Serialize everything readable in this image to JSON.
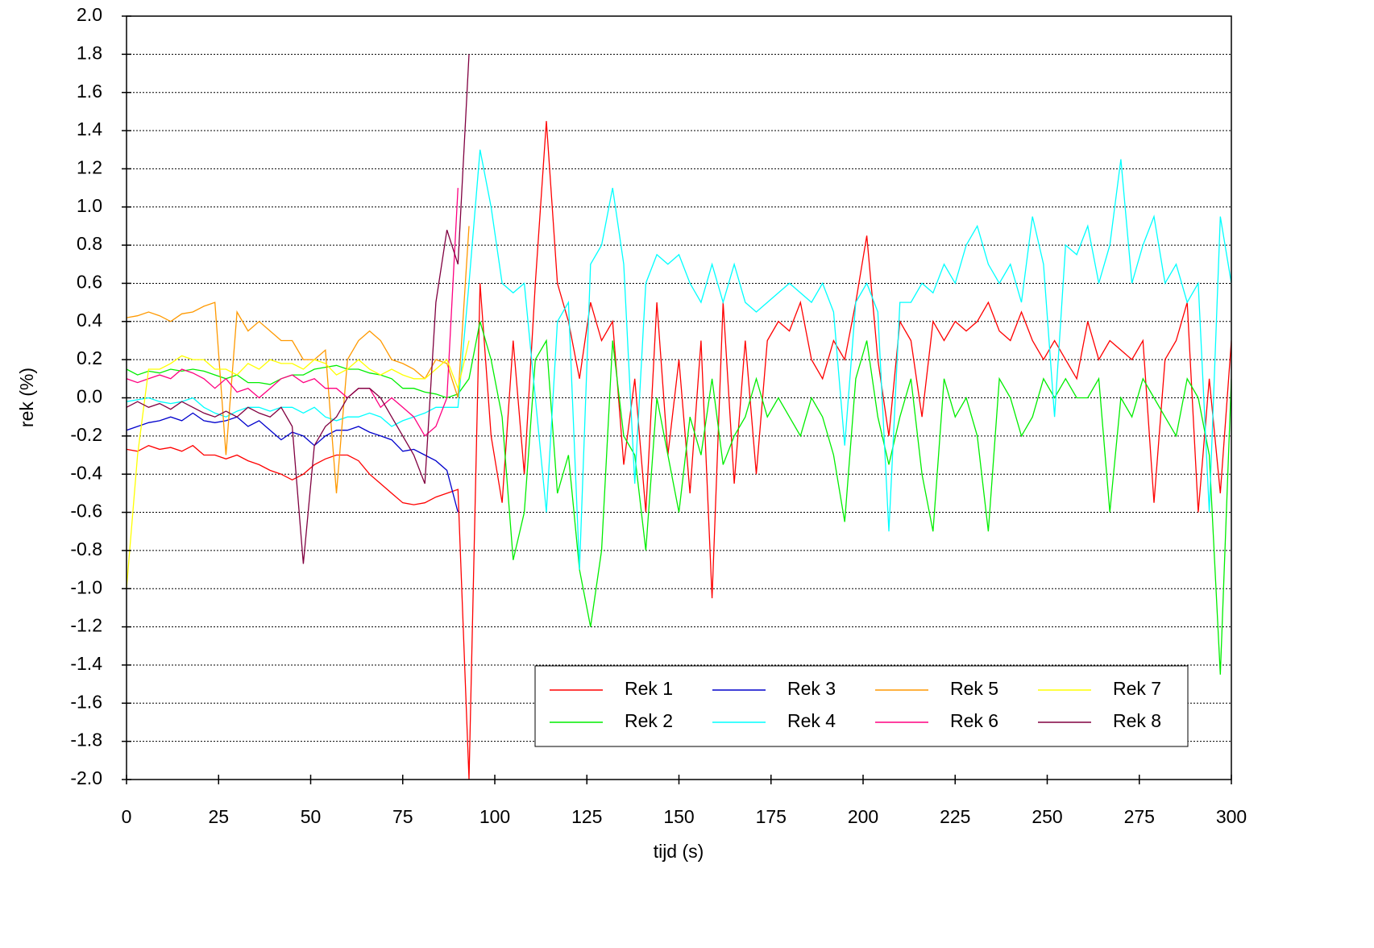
{
  "chart_data": {
    "type": "line",
    "xlabel": "tijd (s)",
    "ylabel": "rek (%)",
    "xlim": [
      0,
      300
    ],
    "xticks": [
      0,
      25,
      50,
      75,
      100,
      125,
      150,
      175,
      200,
      225,
      250,
      275,
      300
    ],
    "ylim": [
      -2,
      2
    ],
    "yticks": [
      {
        "value": -2,
        "label": "-2.0"
      },
      -1.8,
      -1.6,
      -1.4,
      -1.2,
      {
        "value": -1,
        "label": "-1.0"
      },
      -0.8,
      -0.6,
      -0.4,
      -0.2,
      {
        "value": 0,
        "label": "0.0"
      },
      0.2,
      0.4,
      0.6,
      0.8,
      {
        "value": 1,
        "label": "1.0"
      },
      1.2,
      1.4,
      1.6,
      1.8,
      {
        "value": 2,
        "label": "2.0"
      }
    ],
    "grid": true,
    "legend": "lower right",
    "x": [
      0,
      3,
      6,
      9,
      12,
      15,
      18,
      21,
      24,
      27,
      30,
      33,
      36,
      39,
      42,
      45,
      48,
      51,
      54,
      57,
      60,
      63,
      66,
      69,
      72,
      75,
      78,
      81,
      84,
      87,
      90,
      93,
      96,
      99,
      102,
      105,
      108,
      111,
      114,
      117,
      120,
      123,
      126,
      129,
      132,
      135,
      138,
      141,
      144,
      147,
      150,
      153,
      156,
      159,
      162,
      165,
      168,
      171,
      174,
      177,
      180,
      183,
      186,
      189,
      192,
      195,
      198,
      201,
      204,
      207,
      210,
      213,
      216,
      219,
      222,
      225,
      228,
      231,
      234,
      237,
      240,
      243,
      246,
      249,
      252,
      255,
      258,
      261,
      264,
      267,
      270,
      273,
      276,
      279,
      282,
      285,
      288,
      291,
      294,
      297,
      300
    ],
    "series": [
      {
        "name": "Rek 1",
        "color": "#ff0000",
        "values": [
          -0.27,
          -0.28,
          -0.25,
          -0.27,
          -0.26,
          -0.28,
          -0.25,
          -0.3,
          -0.3,
          -0.32,
          -0.3,
          -0.33,
          -0.35,
          -0.38,
          -0.4,
          -0.43,
          -0.4,
          -0.35,
          -0.32,
          -0.3,
          -0.3,
          -0.33,
          -0.4,
          -0.45,
          -0.5,
          -0.55,
          -0.56,
          -0.55,
          -0.52,
          -0.5,
          -0.48,
          -2.0,
          0.6,
          -0.2,
          -0.55,
          0.3,
          -0.4,
          0.6,
          1.45,
          0.6,
          0.4,
          0.1,
          0.5,
          0.3,
          0.4,
          -0.35,
          0.1,
          -0.6,
          0.5,
          -0.3,
          0.2,
          -0.5,
          0.3,
          -1.05,
          0.5,
          -0.45,
          0.3,
          -0.4,
          0.3,
          0.4,
          0.35,
          0.5,
          0.2,
          0.1,
          0.3,
          0.2,
          0.5,
          0.85,
          0.2,
          -0.2,
          0.4,
          0.3,
          -0.1,
          0.4,
          0.3,
          0.4,
          0.35,
          0.4,
          0.5,
          0.35,
          0.3,
          0.45,
          0.3,
          0.2,
          0.3,
          0.2,
          0.1,
          0.4,
          0.2,
          0.3,
          0.25,
          0.2,
          0.3,
          -0.55,
          0.2,
          0.3,
          0.5,
          -0.6,
          0.1,
          -0.5,
          0.3
        ]
      },
      {
        "name": "Rek 2",
        "color": "#00ee00",
        "values": [
          0.15,
          0.12,
          0.14,
          0.13,
          0.15,
          0.14,
          0.15,
          0.14,
          0.12,
          0.1,
          0.12,
          0.08,
          0.08,
          0.07,
          0.1,
          0.12,
          0.12,
          0.15,
          0.16,
          0.17,
          0.15,
          0.15,
          0.13,
          0.12,
          0.1,
          0.05,
          0.05,
          0.03,
          0.02,
          0.0,
          0.02,
          0.1,
          0.4,
          0.2,
          -0.1,
          -0.85,
          -0.6,
          0.2,
          0.3,
          -0.5,
          -0.3,
          -0.9,
          -1.2,
          -0.8,
          0.3,
          -0.2,
          -0.3,
          -0.8,
          0.0,
          -0.3,
          -0.6,
          -0.1,
          -0.3,
          0.1,
          -0.35,
          -0.2,
          -0.1,
          0.1,
          -0.1,
          0.0,
          -0.1,
          -0.2,
          0.0,
          -0.1,
          -0.3,
          -0.65,
          0.1,
          0.3,
          -0.1,
          -0.35,
          -0.1,
          0.1,
          -0.4,
          -0.7,
          0.1,
          -0.1,
          0.0,
          -0.2,
          -0.7,
          0.1,
          0.0,
          -0.2,
          -0.1,
          0.1,
          0.0,
          0.1,
          0.0,
          0.0,
          0.1,
          -0.6,
          0.0,
          -0.1,
          0.1,
          0.0,
          -0.1,
          -0.2,
          0.1,
          0.0,
          -0.3,
          -1.45,
          0.1
        ]
      },
      {
        "name": "Rek 3",
        "color": "#0000cc",
        "values": [
          -0.17,
          -0.15,
          -0.13,
          -0.12,
          -0.1,
          -0.12,
          -0.08,
          -0.12,
          -0.13,
          -0.12,
          -0.1,
          -0.15,
          -0.12,
          -0.17,
          -0.22,
          -0.18,
          -0.2,
          -0.25,
          -0.2,
          -0.17,
          -0.17,
          -0.15,
          -0.18,
          -0.2,
          -0.22,
          -0.28,
          -0.27,
          -0.3,
          -0.33,
          -0.38,
          -0.6,
          null,
          null,
          null,
          null,
          null,
          null,
          null,
          null,
          null,
          null,
          null,
          null,
          null,
          null,
          null,
          null,
          null,
          null,
          null,
          null,
          null,
          null,
          null,
          null,
          null,
          null,
          null,
          null,
          null,
          null,
          null,
          null,
          null,
          null,
          null,
          null,
          null,
          null,
          null,
          null,
          null,
          null,
          null,
          null,
          null,
          null,
          null,
          null,
          null,
          null,
          null,
          null,
          null,
          null,
          null,
          null,
          null,
          null,
          null,
          null,
          null,
          null,
          null,
          null,
          null,
          null,
          null,
          null,
          null,
          null
        ]
      },
      {
        "name": "Rek 4",
        "color": "#00ffff",
        "values": [
          -0.02,
          -0.01,
          0.0,
          -0.02,
          -0.03,
          -0.02,
          0.0,
          -0.05,
          -0.08,
          -0.1,
          -0.07,
          -0.05,
          -0.05,
          -0.07,
          -0.05,
          -0.05,
          -0.08,
          -0.05,
          -0.1,
          -0.12,
          -0.1,
          -0.1,
          -0.08,
          -0.1,
          -0.15,
          -0.12,
          -0.1,
          -0.08,
          -0.05,
          -0.05,
          -0.05,
          0.6,
          1.3,
          1.0,
          0.6,
          0.55,
          0.6,
          0.0,
          -0.6,
          0.4,
          0.5,
          -0.9,
          0.7,
          0.8,
          1.1,
          0.7,
          -0.45,
          0.6,
          0.75,
          0.7,
          0.75,
          0.6,
          0.5,
          0.7,
          0.5,
          0.7,
          0.5,
          0.45,
          0.5,
          0.55,
          0.6,
          0.55,
          0.5,
          0.6,
          0.45,
          -0.25,
          0.5,
          0.6,
          0.45,
          -0.7,
          0.5,
          0.5,
          0.6,
          0.55,
          0.7,
          0.6,
          0.8,
          0.9,
          0.7,
          0.6,
          0.7,
          0.5,
          0.95,
          0.7,
          -0.1,
          0.8,
          0.75,
          0.9,
          0.6,
          0.8,
          1.25,
          0.6,
          0.8,
          0.95,
          0.6,
          0.7,
          0.5,
          0.6,
          -0.6,
          0.95,
          0.6
        ]
      },
      {
        "name": "Rek 5",
        "color": "#ff9900",
        "values": [
          0.42,
          0.43,
          0.45,
          0.43,
          0.4,
          0.44,
          0.45,
          0.48,
          0.5,
          -0.3,
          0.45,
          0.35,
          0.4,
          0.35,
          0.3,
          0.3,
          0.2,
          0.2,
          0.25,
          -0.5,
          0.2,
          0.3,
          0.35,
          0.3,
          0.2,
          0.18,
          0.15,
          0.1,
          0.2,
          0.18,
          0.0,
          0.9,
          null,
          null,
          null,
          null,
          null,
          null,
          null,
          null,
          null,
          null,
          null,
          null,
          null,
          null,
          null,
          null,
          null,
          null,
          null,
          null,
          null,
          null,
          null,
          null,
          null,
          null,
          null,
          null,
          null,
          null,
          null,
          null,
          null,
          null,
          null,
          null,
          null,
          null,
          null,
          null,
          null,
          null,
          null,
          null,
          null,
          null,
          null,
          null,
          null,
          null,
          null,
          null,
          null,
          null,
          null,
          null,
          null,
          null,
          null,
          null,
          null,
          null,
          null,
          null,
          null,
          null,
          null,
          null,
          null
        ]
      },
      {
        "name": "Rek 6",
        "color": "#ff0080",
        "values": [
          0.1,
          0.08,
          0.1,
          0.12,
          0.1,
          0.15,
          0.13,
          0.1,
          0.05,
          0.1,
          0.03,
          0.05,
          0.0,
          0.05,
          0.1,
          0.12,
          0.08,
          0.1,
          0.05,
          0.05,
          0.0,
          0.05,
          0.05,
          -0.05,
          0.0,
          -0.05,
          -0.1,
          -0.2,
          -0.15,
          0.0,
          1.1,
          null,
          null,
          null,
          null,
          null,
          null,
          null,
          null,
          null,
          null,
          null,
          null,
          null,
          null,
          null,
          null,
          null,
          null,
          null,
          null,
          null,
          null,
          null,
          null,
          null,
          null,
          null,
          null,
          null,
          null,
          null,
          null,
          null,
          null,
          null,
          null,
          null,
          null,
          null,
          null,
          null,
          null,
          null,
          null,
          null,
          null,
          null,
          null,
          null,
          null,
          null,
          null,
          null,
          null,
          null,
          null,
          null,
          null,
          null,
          null,
          null,
          null,
          null,
          null,
          null,
          null,
          null,
          null,
          null,
          null
        ]
      },
      {
        "name": "Rek 7",
        "color": "#ffff00",
        "values": [
          -1.0,
          -0.3,
          0.15,
          0.15,
          0.18,
          0.22,
          0.2,
          0.2,
          0.15,
          0.15,
          0.12,
          0.18,
          0.15,
          0.2,
          0.18,
          0.18,
          0.15,
          0.2,
          0.18,
          0.12,
          0.15,
          0.2,
          0.15,
          0.12,
          0.15,
          0.12,
          0.1,
          0.1,
          0.15,
          0.2,
          0.05,
          0.3,
          null,
          null,
          null,
          null,
          null,
          null,
          null,
          null,
          null,
          null,
          null,
          null,
          null,
          null,
          null,
          null,
          null,
          null,
          null,
          null,
          null,
          null,
          null,
          null,
          null,
          null,
          null,
          null,
          null,
          null,
          null,
          null,
          null,
          null,
          null,
          null,
          null,
          null,
          null,
          null,
          null,
          null,
          null,
          null,
          null,
          null,
          null,
          null,
          null,
          null,
          null,
          null,
          null,
          null,
          null,
          null,
          null,
          null,
          null,
          null,
          null,
          null,
          null,
          null,
          null,
          null,
          null,
          null,
          null
        ]
      },
      {
        "name": "Rek 8",
        "color": "#800040",
        "values": [
          -0.05,
          -0.02,
          -0.05,
          -0.03,
          -0.06,
          -0.02,
          -0.05,
          -0.08,
          -0.1,
          -0.07,
          -0.1,
          -0.05,
          -0.08,
          -0.1,
          -0.05,
          -0.15,
          -0.87,
          -0.25,
          -0.15,
          -0.1,
          0.0,
          0.05,
          0.05,
          0.0,
          -0.1,
          -0.2,
          -0.3,
          -0.45,
          0.5,
          0.88,
          0.7,
          1.8,
          null,
          null,
          null,
          null,
          null,
          null,
          null,
          null,
          null,
          null,
          null,
          null,
          null,
          null,
          null,
          null,
          null,
          null,
          null,
          null,
          null,
          null,
          null,
          null,
          null,
          null,
          null,
          null,
          null,
          null,
          null,
          null,
          null,
          null,
          null,
          null,
          null,
          null,
          null,
          null,
          null,
          null,
          null,
          null,
          null,
          null,
          null,
          null,
          null,
          null,
          null,
          null,
          null,
          null,
          null,
          null,
          null,
          null,
          null,
          null,
          null,
          null,
          null,
          null,
          null,
          null,
          null,
          null,
          null
        ]
      }
    ]
  }
}
